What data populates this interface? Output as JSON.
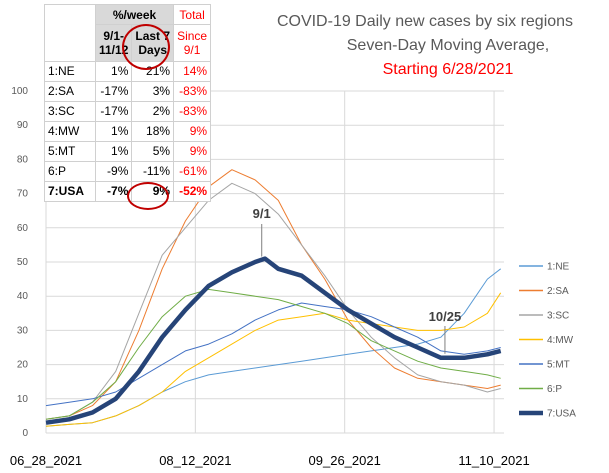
{
  "title": {
    "line1": "COVID-19 Daily new cases by six regions",
    "line2": "Seven-Day Moving Average,",
    "line3": "Starting 6/28/2021"
  },
  "table": {
    "header": {
      "pct_week": "%/week",
      "col1_a": "9/1-",
      "col1_b": "11/12",
      "col2_a": "Last 7",
      "col2_b": "Days",
      "col3_a": "Total",
      "col3_b": "Since",
      "col3_c": "9/1"
    },
    "rows": [
      {
        "region": "1:NE",
        "since91": "1%",
        "last7": "21%",
        "total": "14%"
      },
      {
        "region": "2:SA",
        "since91": "-17%",
        "last7": "3%",
        "total": "-83%"
      },
      {
        "region": "3:SC",
        "since91": "-17%",
        "last7": "2%",
        "total": "-83%"
      },
      {
        "region": "4:MW",
        "since91": "1%",
        "last7": "18%",
        "total": "9%"
      },
      {
        "region": "5:MT",
        "since91": "1%",
        "last7": "5%",
        "total": "9%"
      },
      {
        "region": "6:P",
        "since91": "-9%",
        "last7": "-11%",
        "total": "-61%"
      },
      {
        "region": "7:USA",
        "since91": "-7%",
        "last7": "9%",
        "total": "-52%"
      }
    ]
  },
  "colors": {
    "NE": "#5b9bd5",
    "SA": "#ed7d31",
    "SC": "#a5a5a5",
    "MW": "#ffc000",
    "MT": "#4472c4",
    "P": "#70ad47",
    "USA": "#264478",
    "circle": "#c00000"
  },
  "chart_data": {
    "type": "line",
    "title": "COVID-19 Daily new cases by six regions Seven-Day Moving Average, Starting 6/28/2021",
    "xlabel": "",
    "ylabel": "",
    "ylim": [
      0,
      100
    ],
    "yticks": [
      0,
      10,
      20,
      30,
      40,
      50,
      60,
      70,
      80,
      90,
      100
    ],
    "x_start": "06_28_2021",
    "x_end": "11_12_2021",
    "xtick_labels": [
      "06_28_2021",
      "08_12_2021",
      "09_26_2021",
      "11_10_2021"
    ],
    "xtick_days": [
      0,
      45,
      90,
      135
    ],
    "grid": true,
    "legend_position": "right",
    "annotations": [
      {
        "text": "9/1",
        "day": 65,
        "value": 51
      },
      {
        "text": "10/25",
        "day": 119,
        "value": 22
      }
    ],
    "series": [
      {
        "name": "1:NE",
        "days": [
          0,
          7,
          14,
          21,
          28,
          35,
          42,
          49,
          56,
          63,
          70,
          77,
          84,
          91,
          98,
          105,
          112,
          119,
          126,
          133,
          137
        ],
        "values": [
          2,
          2.5,
          3,
          5,
          8,
          12,
          15,
          17,
          18,
          19,
          20,
          21,
          22,
          23,
          24,
          25,
          26,
          28,
          35,
          45,
          48
        ]
      },
      {
        "name": "2:SA",
        "days": [
          0,
          7,
          14,
          21,
          28,
          35,
          42,
          49,
          56,
          63,
          70,
          77,
          84,
          91,
          98,
          105,
          112,
          119,
          126,
          133,
          137
        ],
        "values": [
          4,
          5,
          8,
          15,
          30,
          48,
          62,
          72,
          77,
          74,
          68,
          55,
          45,
          33,
          25,
          19,
          16,
          15,
          14,
          13,
          14
        ]
      },
      {
        "name": "3:SC",
        "days": [
          0,
          7,
          14,
          21,
          28,
          35,
          42,
          49,
          56,
          63,
          70,
          77,
          84,
          91,
          98,
          105,
          112,
          119,
          126,
          133,
          137
        ],
        "values": [
          4,
          5,
          9,
          18,
          35,
          52,
          60,
          68,
          73,
          70,
          64,
          55,
          46,
          36,
          28,
          22,
          17,
          15,
          14,
          12,
          13
        ]
      },
      {
        "name": "4:MW",
        "days": [
          0,
          7,
          14,
          21,
          28,
          35,
          42,
          49,
          56,
          63,
          70,
          77,
          84,
          91,
          98,
          105,
          112,
          119,
          126,
          133,
          137
        ],
        "values": [
          2,
          2.5,
          3,
          5,
          8,
          12,
          18,
          22,
          26,
          30,
          33,
          34,
          35,
          33,
          32,
          31,
          30,
          30,
          31,
          35,
          41
        ]
      },
      {
        "name": "5:MT",
        "days": [
          0,
          7,
          14,
          21,
          28,
          35,
          42,
          49,
          56,
          63,
          70,
          77,
          84,
          91,
          98,
          105,
          112,
          119,
          126,
          133,
          137
        ],
        "values": [
          8,
          9,
          10,
          12,
          16,
          20,
          24,
          26,
          29,
          33,
          36,
          38,
          37,
          36,
          34,
          31,
          28,
          24,
          23,
          24,
          25
        ]
      },
      {
        "name": "6:P",
        "days": [
          0,
          7,
          14,
          21,
          28,
          35,
          42,
          49,
          56,
          63,
          70,
          77,
          84,
          91,
          98,
          105,
          112,
          119,
          126,
          133,
          137
        ],
        "values": [
          4,
          5,
          9,
          15,
          25,
          34,
          40,
          42,
          41,
          40,
          39,
          37,
          35,
          32,
          27,
          24,
          21,
          19,
          18,
          17,
          16
        ]
      },
      {
        "name": "7:USA",
        "days": [
          0,
          7,
          14,
          21,
          28,
          35,
          42,
          49,
          56,
          63,
          66,
          70,
          77,
          84,
          91,
          98,
          105,
          112,
          119,
          126,
          133,
          137
        ],
        "values": [
          3,
          4,
          6,
          10,
          18,
          28,
          36,
          43,
          47,
          50,
          51,
          48,
          46,
          41,
          36,
          32,
          28,
          25,
          22,
          22,
          23,
          24
        ]
      }
    ]
  }
}
